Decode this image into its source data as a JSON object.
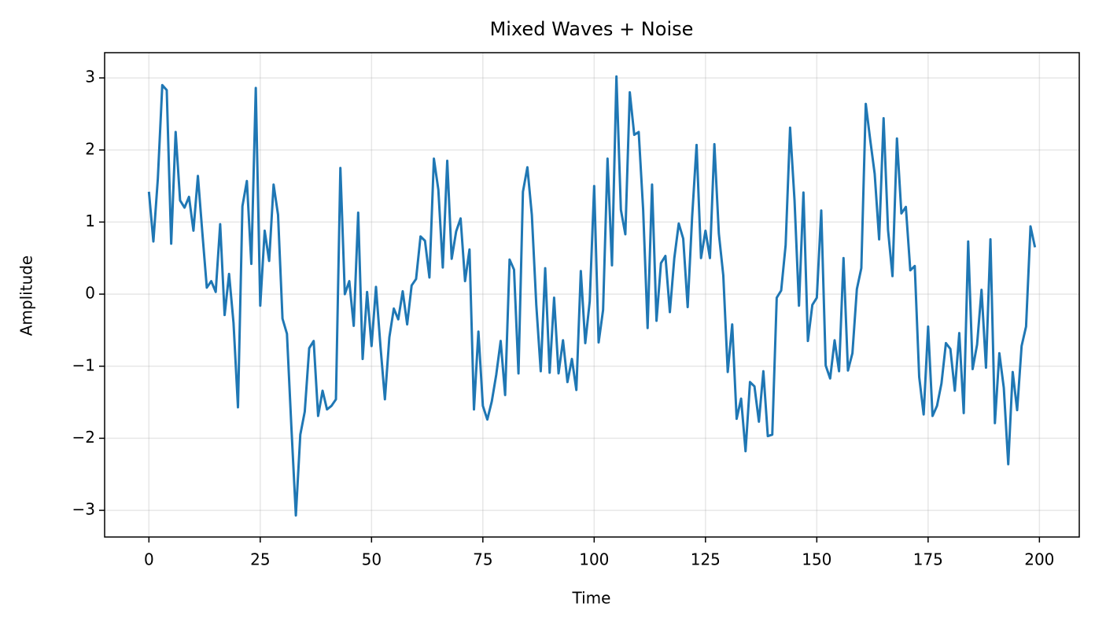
{
  "chart_data": {
    "type": "line",
    "title": "Mixed Waves + Noise",
    "xlabel": "Time",
    "ylabel": "Amplitude",
    "color": "#1f77b4",
    "grid": true,
    "xlim": [
      -9.95,
      208.95
    ],
    "ylim": [
      -3.37,
      3.35
    ],
    "xticks": [
      0,
      25,
      50,
      75,
      100,
      125,
      150,
      175,
      200
    ],
    "yticks": [
      {
        "value": -3,
        "label": "−3"
      },
      {
        "value": -2,
        "label": "−2"
      },
      {
        "value": -1,
        "label": "−1"
      },
      0,
      1,
      2,
      3
    ],
    "x": [
      0,
      1,
      2,
      3,
      4,
      5,
      6,
      7,
      8,
      9,
      10,
      11,
      12,
      13,
      14,
      15,
      16,
      17,
      18,
      19,
      20,
      21,
      22,
      23,
      24,
      25,
      26,
      27,
      28,
      29,
      30,
      31,
      32,
      33,
      34,
      35,
      36,
      37,
      38,
      39,
      40,
      41,
      42,
      43,
      44,
      45,
      46,
      47,
      48,
      49,
      50,
      51,
      52,
      53,
      54,
      55,
      56,
      57,
      58,
      59,
      60,
      61,
      62,
      63,
      64,
      65,
      66,
      67,
      68,
      69,
      70,
      71,
      72,
      73,
      74,
      75,
      76,
      77,
      78,
      79,
      80,
      81,
      82,
      83,
      84,
      85,
      86,
      87,
      88,
      89,
      90,
      91,
      92,
      93,
      94,
      95,
      96,
      97,
      98,
      99,
      100,
      101,
      102,
      103,
      104,
      105,
      106,
      107,
      108,
      109,
      110,
      111,
      112,
      113,
      114,
      115,
      116,
      117,
      118,
      119,
      120,
      121,
      122,
      123,
      124,
      125,
      126,
      127,
      128,
      129,
      130,
      131,
      132,
      133,
      134,
      135,
      136,
      137,
      138,
      139,
      140,
      141,
      142,
      143,
      144,
      145,
      146,
      147,
      148,
      149,
      150,
      151,
      152,
      153,
      154,
      155,
      156,
      157,
      158,
      159,
      160,
      161,
      162,
      163,
      164,
      165,
      166,
      167,
      168,
      169,
      170,
      171,
      172,
      173,
      174,
      175,
      176,
      177,
      178,
      179,
      180,
      181,
      182,
      183,
      184,
      185,
      186,
      187,
      188,
      189,
      190,
      191,
      192,
      193,
      194,
      195,
      196,
      197,
      198,
      199
    ],
    "values": [
      1.42,
      0.73,
      1.6,
      2.9,
      2.83,
      0.7,
      2.25,
      1.3,
      1.2,
      1.35,
      0.88,
      1.64,
      0.85,
      0.09,
      0.18,
      0.03,
      0.97,
      -0.29,
      0.28,
      -0.4,
      -1.57,
      1.22,
      1.57,
      0.42,
      2.86,
      -0.16,
      0.88,
      0.46,
      1.52,
      1.1,
      -0.34,
      -0.55,
      -1.85,
      -3.07,
      -1.95,
      -1.63,
      -0.75,
      -0.65,
      -1.69,
      -1.34,
      -1.6,
      -1.55,
      -1.46,
      1.75,
      0.0,
      0.18,
      -0.44,
      1.13,
      -0.9,
      0.03,
      -0.72,
      0.1,
      -0.72,
      -1.46,
      -0.6,
      -0.2,
      -0.35,
      0.04,
      -0.42,
      0.12,
      0.21,
      0.8,
      0.74,
      0.23,
      1.88,
      1.45,
      0.37,
      1.85,
      0.49,
      0.87,
      1.05,
      0.18,
      0.62,
      -1.6,
      -0.52,
      -1.55,
      -1.74,
      -1.49,
      -1.12,
      -0.65,
      -1.4,
      0.48,
      0.34,
      -1.1,
      1.42,
      1.76,
      1.1,
      -0.15,
      -1.07,
      0.36,
      -1.09,
      -0.05,
      -1.1,
      -0.64,
      -1.22,
      -0.9,
      -1.33,
      0.32,
      -0.68,
      -0.1,
      1.5,
      -0.67,
      -0.22,
      1.88,
      0.4,
      3.02,
      1.17,
      0.83,
      2.8,
      2.21,
      2.25,
      1.17,
      -0.47,
      1.52,
      -0.37,
      0.43,
      0.53,
      -0.25,
      0.5,
      0.98,
      0.77,
      -0.18,
      1.07,
      2.07,
      0.5,
      0.88,
      0.5,
      2.08,
      0.84,
      0.26,
      -1.08,
      -0.42,
      -1.73,
      -1.45,
      -2.18,
      -1.22,
      -1.28,
      -1.77,
      -1.07,
      -1.97,
      -1.95,
      -0.05,
      0.05,
      0.68,
      2.31,
      1.3,
      -0.16,
      1.41,
      -0.65,
      -0.15,
      -0.05,
      1.16,
      -0.99,
      -1.17,
      -0.64,
      -1.07,
      0.5,
      -1.06,
      -0.82,
      0.07,
      0.36,
      2.64,
      2.14,
      1.67,
      0.76,
      2.44,
      0.89,
      0.25,
      2.16,
      1.12,
      1.21,
      0.33,
      0.39,
      -1.15,
      -1.67,
      -0.45,
      -1.69,
      -1.55,
      -1.24,
      -0.68,
      -0.76,
      -1.34,
      -0.54,
      -1.65,
      0.73,
      -1.04,
      -0.7,
      0.06,
      -1.02,
      0.76,
      -1.79,
      -0.82,
      -1.3,
      -2.36,
      -1.08,
      -1.61,
      -0.72,
      -0.45,
      0.94,
      0.65
    ]
  }
}
